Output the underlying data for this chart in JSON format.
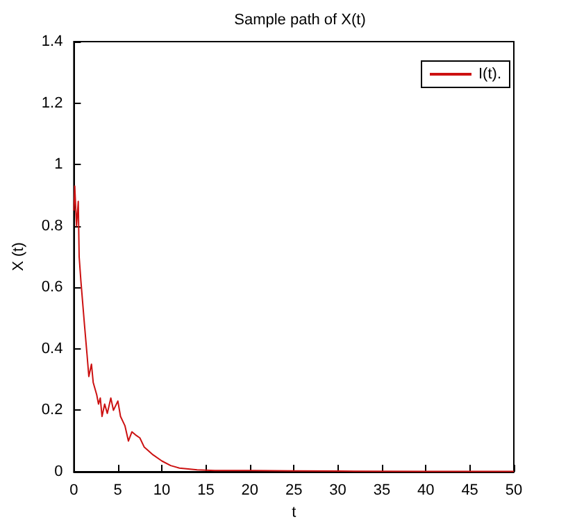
{
  "chart_data": {
    "type": "line",
    "title": "Sample path of X(t)",
    "xlabel": "t",
    "ylabel": "X (t)",
    "x": [
      0,
      0.1,
      0.3,
      0.5,
      0.6,
      0.8,
      1.0,
      1.2,
      1.5,
      1.7,
      2.0,
      2.2,
      2.6,
      2.8,
      3.0,
      3.2,
      3.5,
      3.8,
      4.2,
      4.5,
      5.0,
      5.3,
      5.8,
      6.2,
      6.6,
      7.0,
      7.5,
      8,
      9,
      10,
      11,
      12,
      14,
      16,
      20,
      25,
      30,
      40,
      50
    ],
    "series": [
      {
        "name": "I(t).",
        "color": "#cc1111",
        "values": [
          0.85,
          0.93,
          0.8,
          0.88,
          0.7,
          0.62,
          0.55,
          0.48,
          0.38,
          0.31,
          0.35,
          0.29,
          0.25,
          0.22,
          0.24,
          0.18,
          0.22,
          0.19,
          0.24,
          0.2,
          0.23,
          0.18,
          0.15,
          0.1,
          0.13,
          0.12,
          0.11,
          0.08,
          0.055,
          0.035,
          0.02,
          0.012,
          0.006,
          0.004,
          0.004,
          0.003,
          0.002,
          0.001,
          0.001
        ]
      }
    ],
    "xlim": [
      0,
      50
    ],
    "xticks": [
      0,
      5,
      10,
      15,
      20,
      25,
      30,
      35,
      40,
      45,
      50
    ],
    "ylim": [
      0,
      1.4
    ],
    "yticks": [
      0,
      0.2,
      0.4,
      0.6,
      0.8,
      1,
      1.2,
      1.4
    ],
    "legend": "top right",
    "grid": false,
    "marker": "none",
    "line_style": "solid"
  }
}
